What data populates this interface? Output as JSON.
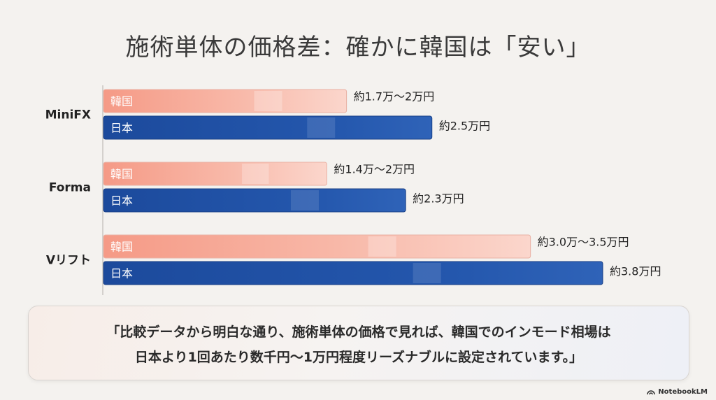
{
  "title": "施術単体の価格差：確かに韓国は「安い」",
  "chart_data": {
    "type": "bar",
    "orientation": "horizontal",
    "categories": [
      "MiniFX",
      "Forma",
      "Vリフト"
    ],
    "series": [
      {
        "name": "韓国",
        "values": [
          1.85,
          1.7,
          3.25
        ],
        "labels": [
          "約1.7万～2万円",
          "約1.4万～2万円",
          "約3.0万～3.5万円"
        ],
        "color": "#f4a090"
      },
      {
        "name": "日本",
        "values": [
          2.5,
          2.3,
          3.8
        ],
        "labels": [
          "約2.5万円",
          "約2.3万円",
          "約3.8万円"
        ],
        "color": "#1f4ea0"
      }
    ],
    "xlim": [
      0,
      3.8
    ],
    "grid": false
  },
  "quote": {
    "line1": "「比較データから明白な通り、施術単体の価格で見れば、韓国でのインモード相場は",
    "line2": "日本より1回あたり数千円～1万円程度リーズナブルに設定されています。」"
  },
  "brand": "NotebookLM"
}
